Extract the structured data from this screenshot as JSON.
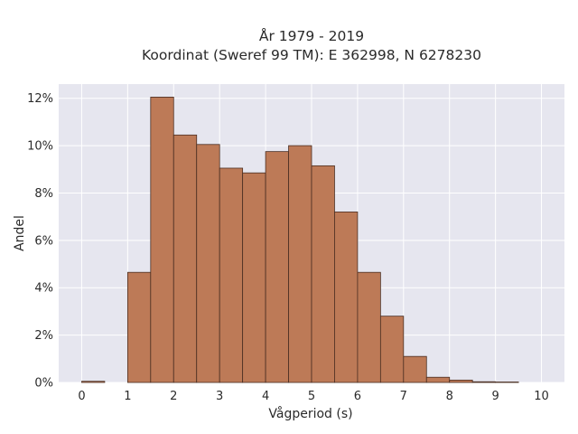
{
  "chart_data": {
    "type": "bar",
    "title_line1": "År 1979 - 2019",
    "title_line2": "Koordinat (Sweref 99 TM): E 362998, N 6278230",
    "xlabel": "Vågperiod (s)",
    "ylabel": "Andel",
    "bin_width": 0.5,
    "bins": [
      {
        "start": 0.0,
        "value": 0.05
      },
      {
        "start": 0.5,
        "value": 0.0
      },
      {
        "start": 1.0,
        "value": 4.65
      },
      {
        "start": 1.5,
        "value": 12.05
      },
      {
        "start": 2.0,
        "value": 10.45
      },
      {
        "start": 2.5,
        "value": 10.05
      },
      {
        "start": 3.0,
        "value": 9.05
      },
      {
        "start": 3.5,
        "value": 8.85
      },
      {
        "start": 4.0,
        "value": 9.75
      },
      {
        "start": 4.5,
        "value": 10.0
      },
      {
        "start": 5.0,
        "value": 9.15
      },
      {
        "start": 5.5,
        "value": 7.2
      },
      {
        "start": 6.0,
        "value": 4.65
      },
      {
        "start": 6.5,
        "value": 2.8
      },
      {
        "start": 7.0,
        "value": 1.1
      },
      {
        "start": 7.5,
        "value": 0.22
      },
      {
        "start": 8.0,
        "value": 0.1
      },
      {
        "start": 8.5,
        "value": 0.03
      },
      {
        "start": 9.0,
        "value": 0.02
      },
      {
        "start": 9.5,
        "value": 0.0
      }
    ],
    "xlim": [
      -0.5,
      10.5
    ],
    "ylim": [
      0,
      12.6
    ],
    "xticks": [
      0,
      1,
      2,
      3,
      4,
      5,
      6,
      7,
      8,
      9,
      10
    ],
    "yticks": [
      0,
      2,
      4,
      6,
      8,
      10,
      12
    ],
    "ytick_labels": [
      "0%",
      "2%",
      "4%",
      "6%",
      "8%",
      "10%",
      "12%"
    ],
    "grid": true,
    "colors": {
      "bar_fill": "#bd7a57",
      "bar_edge": "#4a2e22",
      "plot_bg": "#e6e6ef",
      "grid": "#ffffff"
    }
  }
}
